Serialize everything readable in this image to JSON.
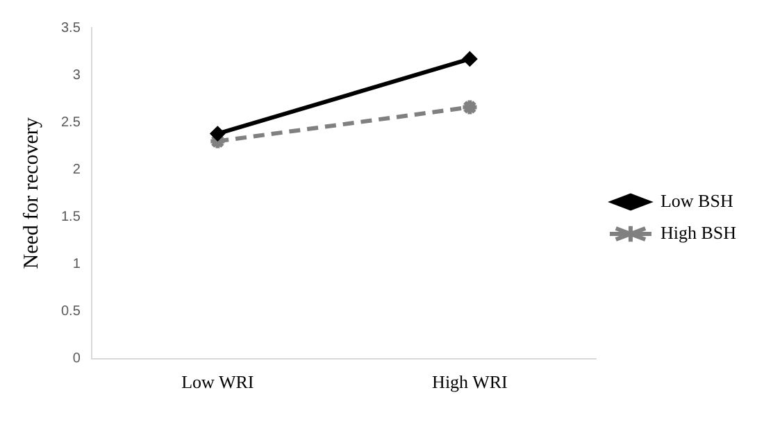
{
  "chart_data": {
    "type": "line",
    "ylabel": "Need for recovery",
    "categories": [
      "Low WRI",
      "High WRI"
    ],
    "series": [
      {
        "name": "Low BSH",
        "color": "#000000",
        "values": [
          2.38,
          3.17
        ],
        "marker": "diamond",
        "line_style": "solid"
      },
      {
        "name": "High BSH",
        "color": "#808080",
        "values": [
          2.3,
          2.66
        ],
        "marker": "cross",
        "line_style": "dashed"
      }
    ],
    "ylim": [
      0,
      3.5
    ],
    "yticks": [
      0,
      0.5,
      1,
      1.5,
      2,
      2.5,
      3,
      3.5
    ],
    "grid": false,
    "legend": "right"
  }
}
